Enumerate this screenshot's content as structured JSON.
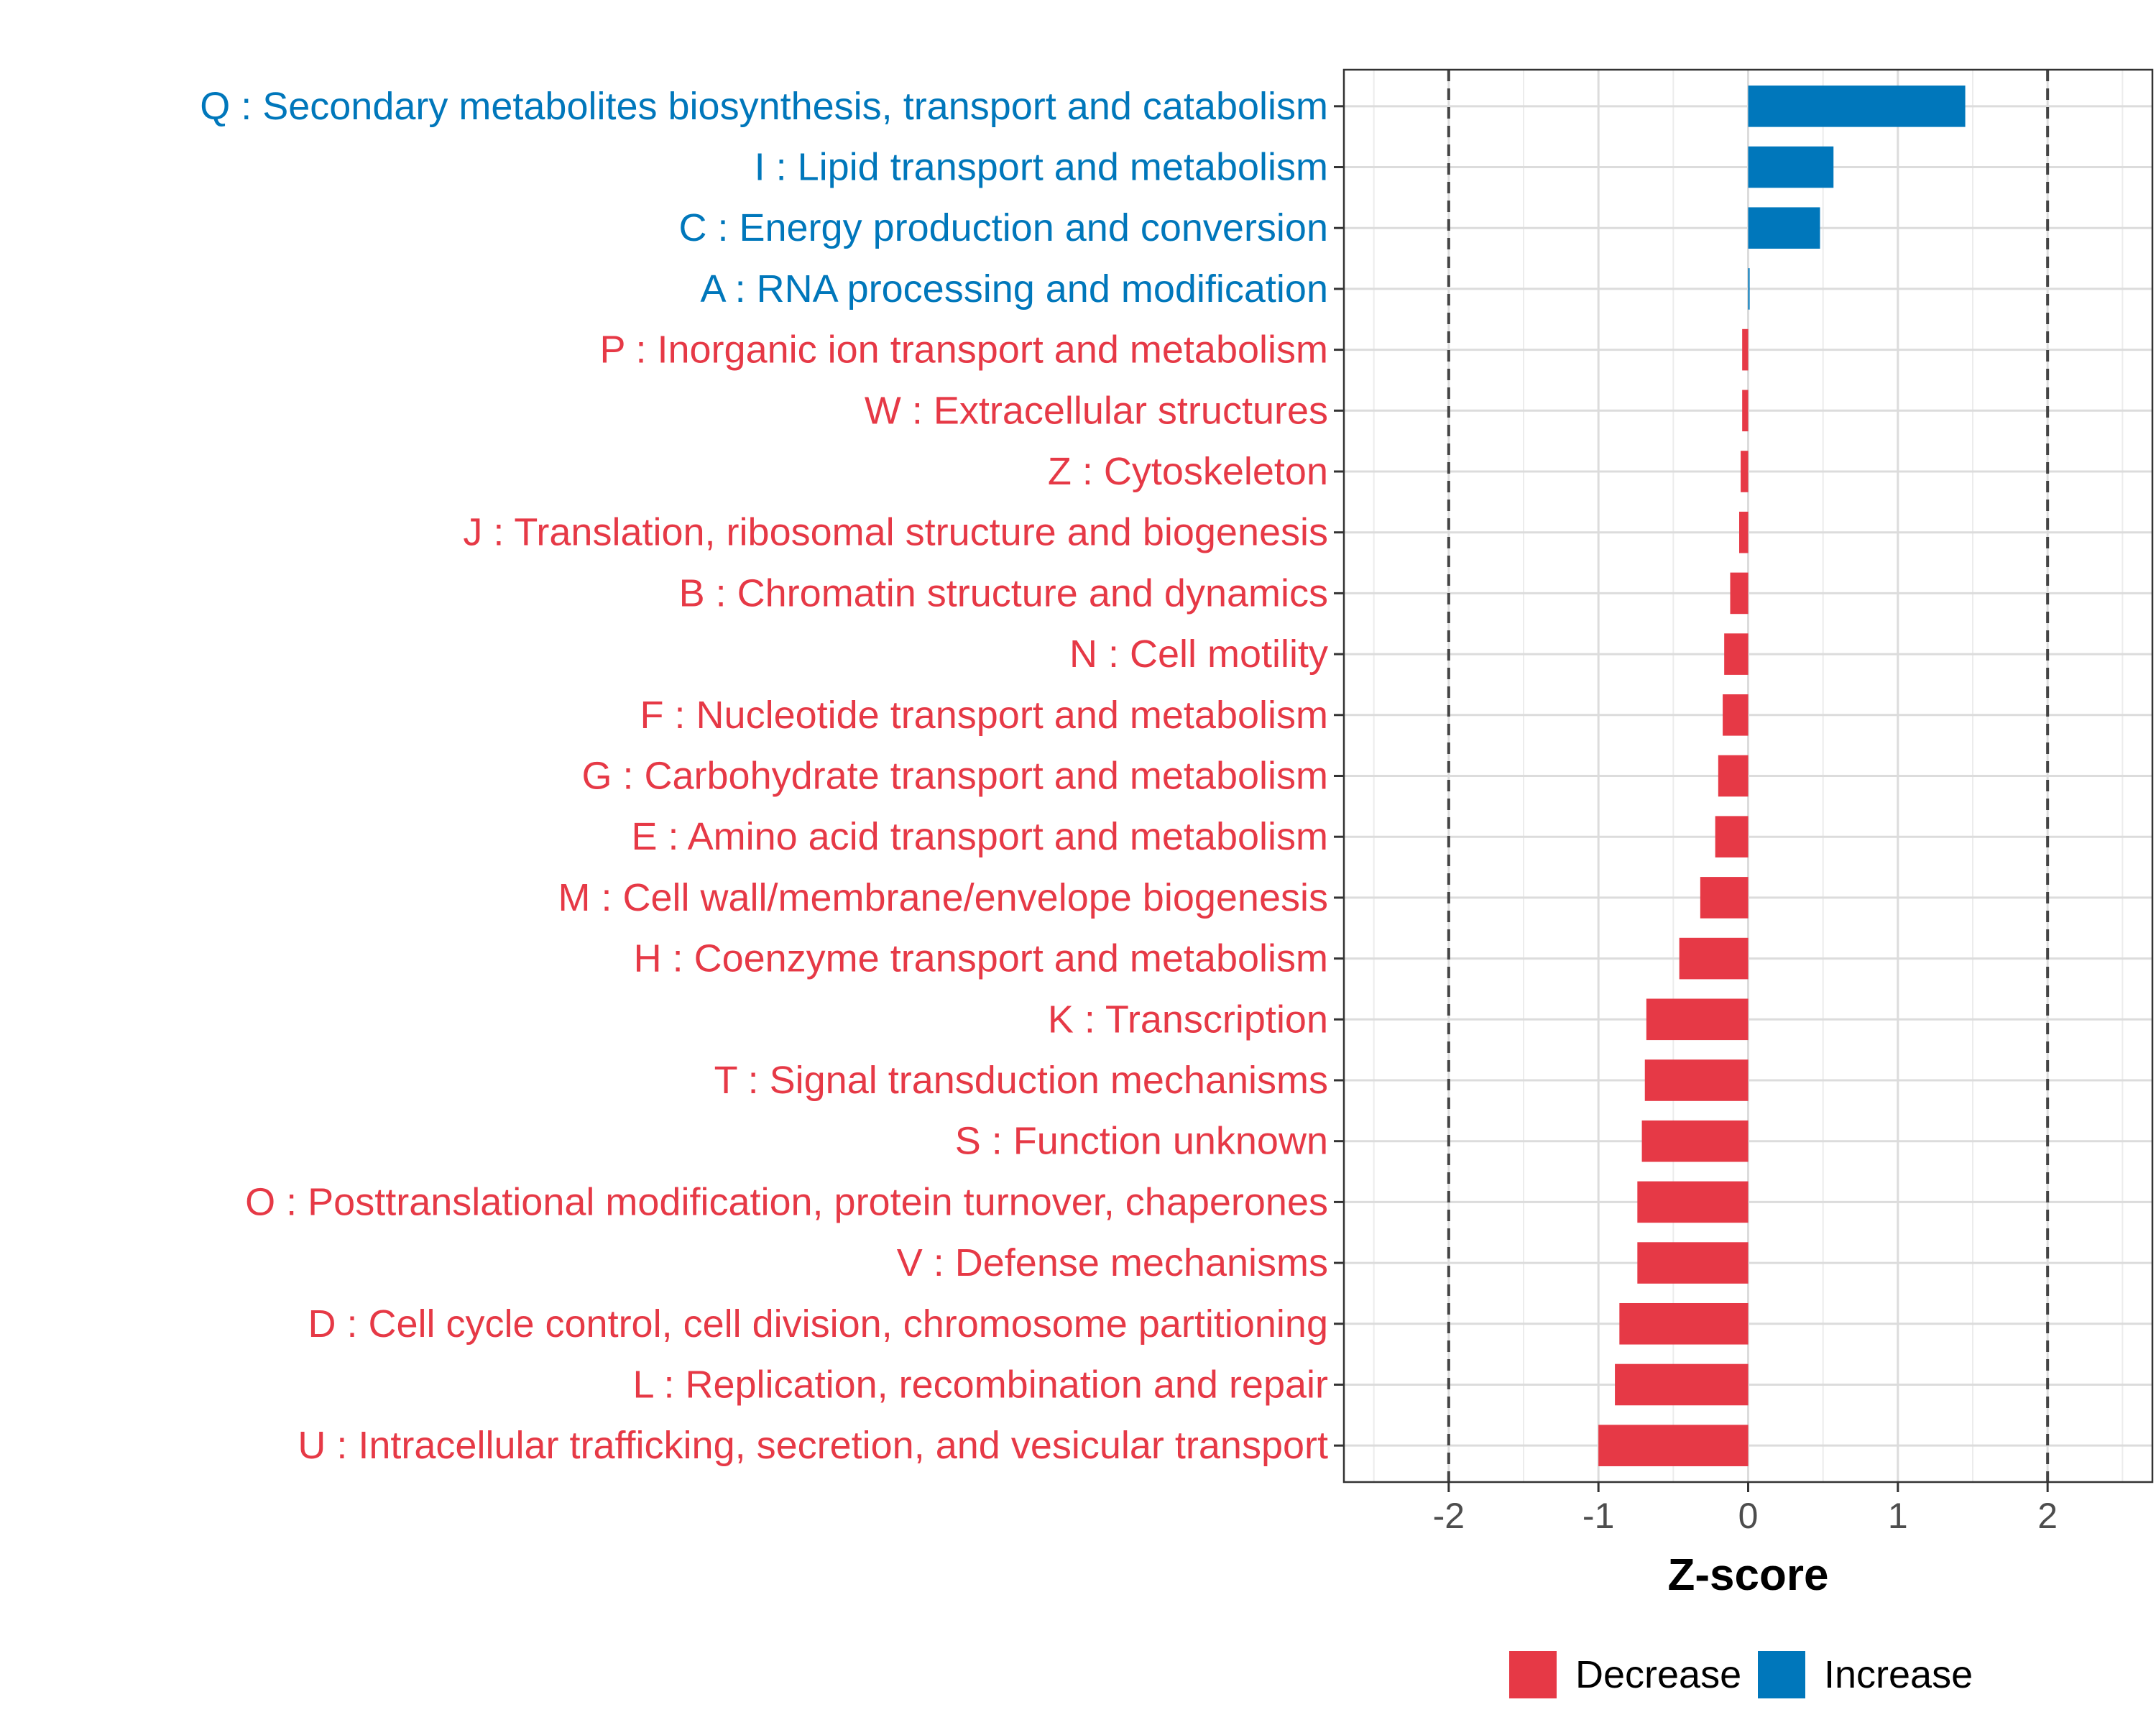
{
  "chart_data": {
    "type": "bar",
    "orientation": "horizontal",
    "xlabel": "Z-score",
    "xlim": [
      -2.7,
      2.7
    ],
    "xticks": [
      -2,
      -1,
      0,
      1,
      2
    ],
    "xtick_labels": [
      "-2",
      "-1",
      "0",
      "1",
      "2"
    ],
    "reference_lines": [
      -2,
      2
    ],
    "grid": true,
    "legend_position": "bottom",
    "colors": {
      "Decrease": "#e63946",
      "Increase": "#0077bb"
    },
    "legend": [
      {
        "label": "Decrease",
        "color": "#e63946"
      },
      {
        "label": "Increase",
        "color": "#0077bb"
      }
    ],
    "categories": [
      "Q : Secondary metabolites biosynthesis, transport and catabolism",
      "I : Lipid transport and metabolism",
      "C : Energy production and conversion",
      "A : RNA processing and modification",
      "P : Inorganic ion transport and metabolism",
      "W : Extracellular structures",
      "Z : Cytoskeleton",
      "J : Translation, ribosomal structure and biogenesis",
      "B : Chromatin structure and dynamics",
      "N : Cell motility",
      "F : Nucleotide transport and metabolism",
      "G : Carbohydrate transport and metabolism",
      "E : Amino acid transport and metabolism",
      "M : Cell wall/membrane/envelope biogenesis",
      "H : Coenzyme transport and metabolism",
      "K : Transcription",
      "T : Signal transduction mechanisms",
      "S : Function unknown",
      "O : Posttranslational modification, protein turnover, chaperones",
      "V : Defense mechanisms",
      "D : Cell cycle control, cell division, chromosome partitioning",
      "L : Replication, recombination and repair",
      "U : Intracellular trafficking, secretion, and vesicular transport"
    ],
    "values": [
      1.45,
      0.57,
      0.48,
      0.01,
      -0.04,
      -0.04,
      -0.05,
      -0.06,
      -0.12,
      -0.16,
      -0.17,
      -0.2,
      -0.22,
      -0.32,
      -0.46,
      -0.68,
      -0.69,
      -0.71,
      -0.74,
      -0.74,
      -0.86,
      -0.89,
      -1.0
    ],
    "groups": [
      "Increase",
      "Increase",
      "Increase",
      "Increase",
      "Decrease",
      "Decrease",
      "Decrease",
      "Decrease",
      "Decrease",
      "Decrease",
      "Decrease",
      "Decrease",
      "Decrease",
      "Decrease",
      "Decrease",
      "Decrease",
      "Decrease",
      "Decrease",
      "Decrease",
      "Decrease",
      "Decrease",
      "Decrease",
      "Decrease"
    ]
  }
}
